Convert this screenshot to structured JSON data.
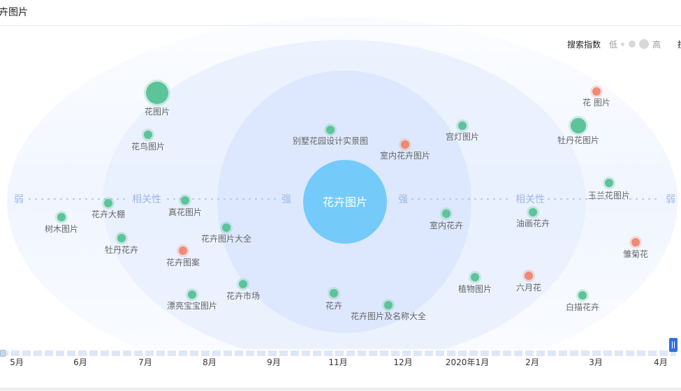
{
  "header": {
    "title": "卉图片"
  },
  "legend": {
    "label": "搜索指数",
    "low": "低",
    "high": "高",
    "extra": "搜"
  },
  "center": {
    "label": "花卉图片",
    "color": "#74cbfa"
  },
  "axis": {
    "weak_left": "弱",
    "weak_right": "弱",
    "relevance_left": "相关性",
    "relevance_right": "相关性",
    "strong_left": "强",
    "strong_right": "强"
  },
  "colors": {
    "green": "#5cc498",
    "red": "#ef8a74",
    "label": "#666666",
    "axis": "#9fb8e6"
  },
  "keywords": [
    {
      "label": "花图片",
      "size": "large",
      "color": "green"
    },
    {
      "label": "花鸟图片",
      "size": "small",
      "color": "green"
    },
    {
      "label": "别墅花园设计实景图",
      "size": "small",
      "color": "green"
    },
    {
      "label": "室内花卉图片",
      "size": "small",
      "color": "red"
    },
    {
      "label": "宫灯图片",
      "size": "small",
      "color": "green"
    },
    {
      "label": "牡丹花图片",
      "size": "medium",
      "color": "green"
    },
    {
      "label": "花 图片",
      "size": "small",
      "color": "red"
    },
    {
      "label": "玉兰花图片",
      "size": "small",
      "color": "green"
    },
    {
      "label": "树木图片",
      "size": "small",
      "color": "green"
    },
    {
      "label": "花卉大棚",
      "size": "small",
      "color": "green"
    },
    {
      "label": "真花图片",
      "size": "small",
      "color": "green"
    },
    {
      "label": "室内花卉",
      "size": "small",
      "color": "green"
    },
    {
      "label": "油画花卉",
      "size": "small",
      "color": "green"
    },
    {
      "label": "牡丹花卉",
      "size": "small",
      "color": "green"
    },
    {
      "label": "花卉图片大全",
      "size": "small",
      "color": "green"
    },
    {
      "label": "花卉图案",
      "size": "small",
      "color": "red"
    },
    {
      "label": "雏菊花",
      "size": "small",
      "color": "red"
    },
    {
      "label": "漂亮宝宝图片",
      "size": "small",
      "color": "green"
    },
    {
      "label": "花卉市场",
      "size": "small",
      "color": "green"
    },
    {
      "label": "花卉",
      "size": "small",
      "color": "green"
    },
    {
      "label": "花卉图片及名称大全",
      "size": "small",
      "color": "green"
    },
    {
      "label": "植物图片",
      "size": "small",
      "color": "green"
    },
    {
      "label": "六月花",
      "size": "small",
      "color": "red"
    },
    {
      "label": "白描花卉",
      "size": "small",
      "color": "green"
    }
  ],
  "timeline": [
    "5月",
    "6月",
    "7月",
    "8月",
    "9月",
    "11月",
    "12月",
    "2020年1月",
    "2月",
    "3月",
    "4月"
  ]
}
